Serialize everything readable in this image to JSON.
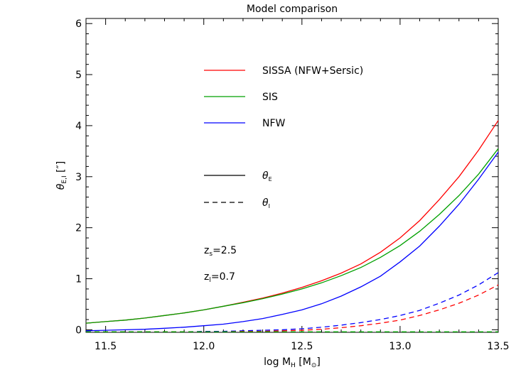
{
  "chart_data": {
    "type": "line",
    "title": "Model comparison",
    "xlabel": {
      "main": "log M",
      "sub": "H",
      "unit_open": " [M",
      "unit_sub": "⊙",
      "unit_close": "]"
    },
    "ylabel": {
      "main": "θ",
      "sub": "E,I",
      "unit": " [″]"
    },
    "xlim": [
      11.4,
      13.5
    ],
    "ylim": [
      -0.05,
      6.1
    ],
    "xticks": [
      11.5,
      12.0,
      12.5,
      13.0,
      13.5
    ],
    "xticklabels": [
      "11.5",
      "12.0",
      "12.5",
      "13.0",
      "13.5"
    ],
    "yticks": [
      0,
      1,
      2,
      3,
      4,
      5,
      6
    ],
    "yticklabels": [
      "0",
      "1",
      "2",
      "3",
      "4",
      "5",
      "6"
    ],
    "grid": false,
    "legend_position": "top-center",
    "x": [
      11.4,
      11.5,
      11.6,
      11.7,
      11.8,
      11.9,
      12.0,
      12.1,
      12.2,
      12.3,
      12.4,
      12.5,
      12.6,
      12.7,
      12.8,
      12.9,
      13.0,
      13.1,
      13.2,
      13.3,
      13.4,
      13.5
    ],
    "series": [
      {
        "name": "SISSA (NFW+Sersic)",
        "color": "#ff0000",
        "style": "solid",
        "values": [
          0.13,
          0.16,
          0.19,
          0.23,
          0.28,
          0.33,
          0.39,
          0.46,
          0.54,
          0.62,
          0.72,
          0.83,
          0.96,
          1.11,
          1.29,
          1.52,
          1.8,
          2.14,
          2.55,
          3.0,
          3.52,
          4.1
        ]
      },
      {
        "name": "SIS",
        "color": "#00a000",
        "style": "solid",
        "values": [
          0.13,
          0.16,
          0.19,
          0.23,
          0.28,
          0.33,
          0.39,
          0.46,
          0.53,
          0.61,
          0.7,
          0.8,
          0.92,
          1.06,
          1.22,
          1.42,
          1.65,
          1.93,
          2.26,
          2.63,
          3.05,
          3.55
        ]
      },
      {
        "name": "NFW",
        "color": "#0000ff",
        "style": "solid",
        "values": [
          -0.02,
          -0.01,
          0.0,
          0.01,
          0.03,
          0.05,
          0.08,
          0.11,
          0.16,
          0.22,
          0.3,
          0.39,
          0.51,
          0.66,
          0.84,
          1.05,
          1.33,
          1.64,
          2.03,
          2.46,
          2.95,
          3.48
        ]
      },
      {
        "color": "#0000ff",
        "style": "dashed",
        "values": [
          -0.04,
          -0.04,
          -0.04,
          -0.04,
          -0.04,
          -0.04,
          -0.03,
          -0.03,
          -0.02,
          -0.01,
          0.0,
          0.02,
          0.05,
          0.09,
          0.14,
          0.2,
          0.28,
          0.38,
          0.52,
          0.68,
          0.88,
          1.12
        ]
      },
      {
        "color": "#ff0000",
        "style": "dashed",
        "values": [
          -0.04,
          -0.04,
          -0.04,
          -0.04,
          -0.04,
          -0.04,
          -0.04,
          -0.04,
          -0.03,
          -0.03,
          -0.02,
          -0.01,
          0.01,
          0.04,
          0.08,
          0.13,
          0.19,
          0.28,
          0.39,
          0.52,
          0.68,
          0.88
        ]
      },
      {
        "color": "#00a000",
        "style": "dashed",
        "values": [
          -0.04,
          -0.04,
          -0.04,
          -0.04,
          -0.04,
          -0.04,
          -0.04,
          -0.04,
          -0.04,
          -0.04,
          -0.04,
          -0.04,
          -0.04,
          -0.04,
          -0.04,
          -0.04,
          -0.04,
          -0.04,
          -0.04,
          -0.04,
          -0.04,
          -0.04
        ]
      }
    ],
    "style_legend": [
      {
        "style": "solid",
        "label": "θ",
        "sub": "E"
      },
      {
        "style": "dashed",
        "label": "θ",
        "sub": "I"
      }
    ],
    "annotations": [
      {
        "main": "z",
        "sub": "s",
        "text": "=2.5"
      },
      {
        "main": "z",
        "sub": "l",
        "text": "=0.7"
      }
    ]
  }
}
